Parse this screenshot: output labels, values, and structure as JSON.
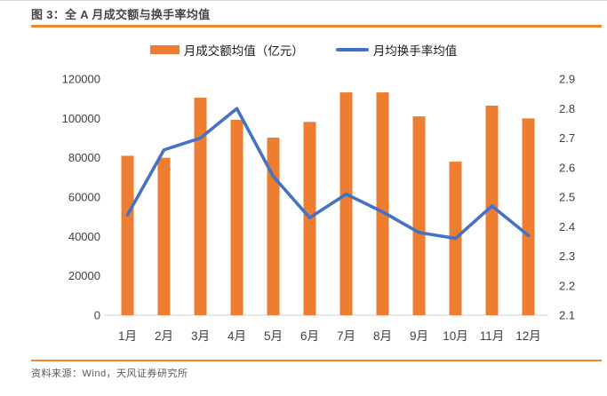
{
  "header": {
    "title": "图 3：全 A 月成交额与换手率均值"
  },
  "legend": {
    "bar_label": "月成交额均值（亿元）",
    "line_label": "月均换手率均值"
  },
  "chart_data": {
    "type": "bar",
    "subtype": "combo bar + line with dual y-axes",
    "title": "全A月成交额与换手率均值",
    "categories": [
      "1月",
      "2月",
      "3月",
      "4月",
      "5月",
      "6月",
      "7月",
      "8月",
      "9月",
      "10月",
      "11月",
      "12月"
    ],
    "series": [
      {
        "name": "月成交额均值（亿元）",
        "type": "bar",
        "axis": "left",
        "color": "#ED7D31",
        "values": [
          81000,
          80000,
          110500,
          99300,
          90200,
          98200,
          113200,
          113200,
          101000,
          78000,
          106500,
          100000
        ]
      },
      {
        "name": "月均换手率均值",
        "type": "line",
        "axis": "right",
        "color": "#4472C4",
        "values": [
          2.44,
          2.66,
          2.7,
          2.8,
          2.57,
          2.43,
          2.51,
          2.45,
          2.38,
          2.36,
          2.47,
          2.37
        ]
      }
    ],
    "left_axis": {
      "min": 0,
      "max": 120000,
      "tick_labels": [
        "0",
        "20000",
        "40000",
        "60000",
        "80000",
        "100000",
        "120000"
      ]
    },
    "right_axis": {
      "min": 2.1,
      "max": 2.9,
      "tick_labels": [
        "2.1",
        "2.2",
        "2.3",
        "2.4",
        "2.5",
        "2.6",
        "2.7",
        "2.8",
        "2.9"
      ]
    },
    "grid": false,
    "legend_position": "top"
  },
  "footer": {
    "source": "资料来源：Wind，天风证券研究所"
  },
  "colors": {
    "bar_orange": "#ED7D31",
    "line_blue": "#4472C4",
    "rule_orange": "#F0872E",
    "axis_text": "#3F3F3F",
    "title_text": "#454545",
    "footer_text": "#595959",
    "baseline_gray": "#D9D9D9"
  }
}
